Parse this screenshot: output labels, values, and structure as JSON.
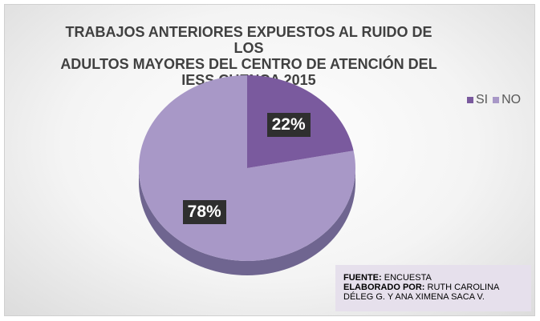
{
  "chart_data": {
    "type": "pie",
    "title": "TRABAJOS ANTERIORES EXPUESTOS AL RUIDO DE LOS\nADULTOS MAYORES DEL CENTRO DE ATENCIÓN DEL\nIESS CUENCA 2015",
    "categories": [
      "SI",
      "NO"
    ],
    "values": [
      22,
      78
    ],
    "data_labels": [
      "22%",
      "78%"
    ],
    "legend_position": "right",
    "colors": [
      "#7a5a9e",
      "#a898c7"
    ]
  },
  "source_box": {
    "fuente_label": "FUENTE:",
    "fuente_value": "ENCUESTA",
    "elaborado_label": "ELABORADO POR:",
    "elaborado_value": "RUTH CAROLINA",
    "elaborado_value_2": "DÉLEG G. Y ANA XIMENA SACA V."
  }
}
